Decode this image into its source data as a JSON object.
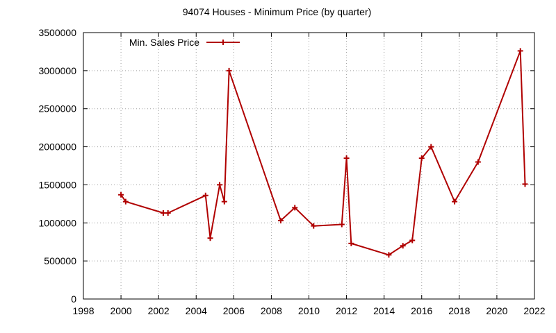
{
  "chart_data": {
    "type": "line",
    "title": "94074 Houses - Minimum Price (by quarter)",
    "xlabel": "",
    "ylabel": "",
    "xlim": [
      1998,
      2022
    ],
    "ylim": [
      0,
      3500000
    ],
    "xticks": [
      1998,
      2000,
      2002,
      2004,
      2006,
      2008,
      2010,
      2012,
      2014,
      2016,
      2018,
      2020,
      2022
    ],
    "yticks": [
      0,
      500000,
      1000000,
      1500000,
      2000000,
      2500000,
      3000000,
      3500000
    ],
    "grid": true,
    "legend_position": "top-left",
    "series": [
      {
        "name": "Min. Sales Price",
        "color": "#b00000",
        "marker": "plus",
        "points": [
          [
            2000.0,
            1370000
          ],
          [
            2000.25,
            1280000
          ],
          [
            2002.25,
            1130000
          ],
          [
            2002.5,
            1130000
          ],
          [
            2004.5,
            1360000
          ],
          [
            2004.75,
            800000
          ],
          [
            2005.25,
            1500000
          ],
          [
            2005.5,
            1280000
          ],
          [
            2005.75,
            3000000
          ],
          [
            2008.5,
            1030000
          ],
          [
            2009.25,
            1200000
          ],
          [
            2010.25,
            960000
          ],
          [
            2011.75,
            980000
          ],
          [
            2012.0,
            1850000
          ],
          [
            2012.25,
            730000
          ],
          [
            2014.25,
            580000
          ],
          [
            2015.0,
            700000
          ],
          [
            2015.5,
            770000
          ],
          [
            2016.0,
            1850000
          ],
          [
            2016.5,
            2000000
          ],
          [
            2017.75,
            1280000
          ],
          [
            2019.0,
            1800000
          ],
          [
            2021.25,
            3260000
          ],
          [
            2021.5,
            1510000
          ]
        ]
      }
    ]
  }
}
